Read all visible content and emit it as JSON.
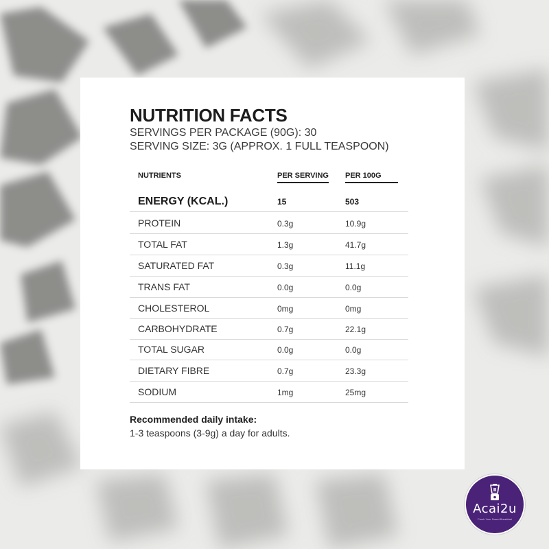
{
  "label": {
    "title": "NUTRITION FACTS",
    "servings_per_package": "SERVINGS PER PACKAGE (90G): 30",
    "serving_size": "SERVING SIZE: 3G (APPROX. 1 FULL TEASPOON)",
    "headers": {
      "nutrients": "NUTRIENTS",
      "per_serving": "PER SERVING",
      "per_100g": "PER 100G"
    },
    "rows": [
      {
        "name": "ENERGY (KCAL.)",
        "per_serving": "15",
        "per_100g": "503"
      },
      {
        "name": "PROTEIN",
        "per_serving": "0.3g",
        "per_100g": "10.9g"
      },
      {
        "name": "TOTAL FAT",
        "per_serving": "1.3g",
        "per_100g": "41.7g"
      },
      {
        "name": "SATURATED FAT",
        "per_serving": "0.3g",
        "per_100g": "11.1g"
      },
      {
        "name": "TRANS FAT",
        "per_serving": "0.0g",
        "per_100g": "0.0g"
      },
      {
        "name": "CHOLESTEROL",
        "per_serving": "0mg",
        "per_100g": "0mg"
      },
      {
        "name": "CARBOHYDRATE",
        "per_serving": "0.7g",
        "per_100g": "22.1g"
      },
      {
        "name": "TOTAL SUGAR",
        "per_serving": "0.0g",
        "per_100g": "0.0g"
      },
      {
        "name": "DIETARY FIBRE",
        "per_serving": "0.7g",
        "per_100g": "23.3g"
      },
      {
        "name": "SODIUM",
        "per_serving": "1mg",
        "per_100g": "25mg"
      }
    ],
    "recommendation": {
      "heading": "Recommended daily intake:",
      "text": "1-3 teaspoons (3-9g) a day for adults."
    }
  },
  "logo": {
    "name": "Acai2u",
    "tagline": "Fresh Your Sweet Breakfast",
    "color": "#4a2277",
    "icon": "blender-icon"
  },
  "colors": {
    "background": "#e9e9e7",
    "card": "#ffffff",
    "text": "#1c1c1c"
  }
}
